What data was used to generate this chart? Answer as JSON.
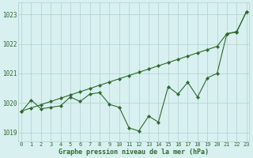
{
  "xlabel": "Graphe pression niveau de la mer (hPa)",
  "x": [
    0,
    1,
    2,
    3,
    4,
    5,
    6,
    7,
    8,
    9,
    10,
    11,
    12,
    13,
    14,
    15,
    16,
    17,
    18,
    19,
    20,
    21,
    22,
    23
  ],
  "line1": [
    1019.7,
    1020.1,
    1019.8,
    1019.85,
    1019.9,
    1020.2,
    1020.05,
    1020.3,
    1020.35,
    1019.95,
    1019.85,
    1019.15,
    1019.05,
    1019.55,
    1019.35,
    1020.55,
    1020.3,
    1020.7,
    1020.2,
    1020.85,
    1021.0,
    1022.35,
    1022.4,
    1023.1
  ],
  "line2": [
    1019.72,
    1019.83,
    1019.94,
    1020.05,
    1020.16,
    1020.27,
    1020.38,
    1020.49,
    1020.6,
    1020.71,
    1020.82,
    1020.93,
    1021.04,
    1021.15,
    1021.26,
    1021.37,
    1021.48,
    1021.59,
    1021.7,
    1021.81,
    1021.92,
    1022.35,
    1022.42,
    1023.1
  ],
  "line_color": "#2d6a2d",
  "bg_color": "#d8f0f0",
  "grid_color": "#b0cece",
  "text_color": "#2d6a2d",
  "ylim_min": 1018.7,
  "ylim_max": 1023.4,
  "yticks": [
    1019,
    1020,
    1021,
    1022,
    1023
  ],
  "xticks": [
    0,
    1,
    2,
    3,
    4,
    5,
    6,
    7,
    8,
    9,
    10,
    11,
    12,
    13,
    14,
    15,
    16,
    17,
    18,
    19,
    20,
    21,
    22,
    23
  ]
}
